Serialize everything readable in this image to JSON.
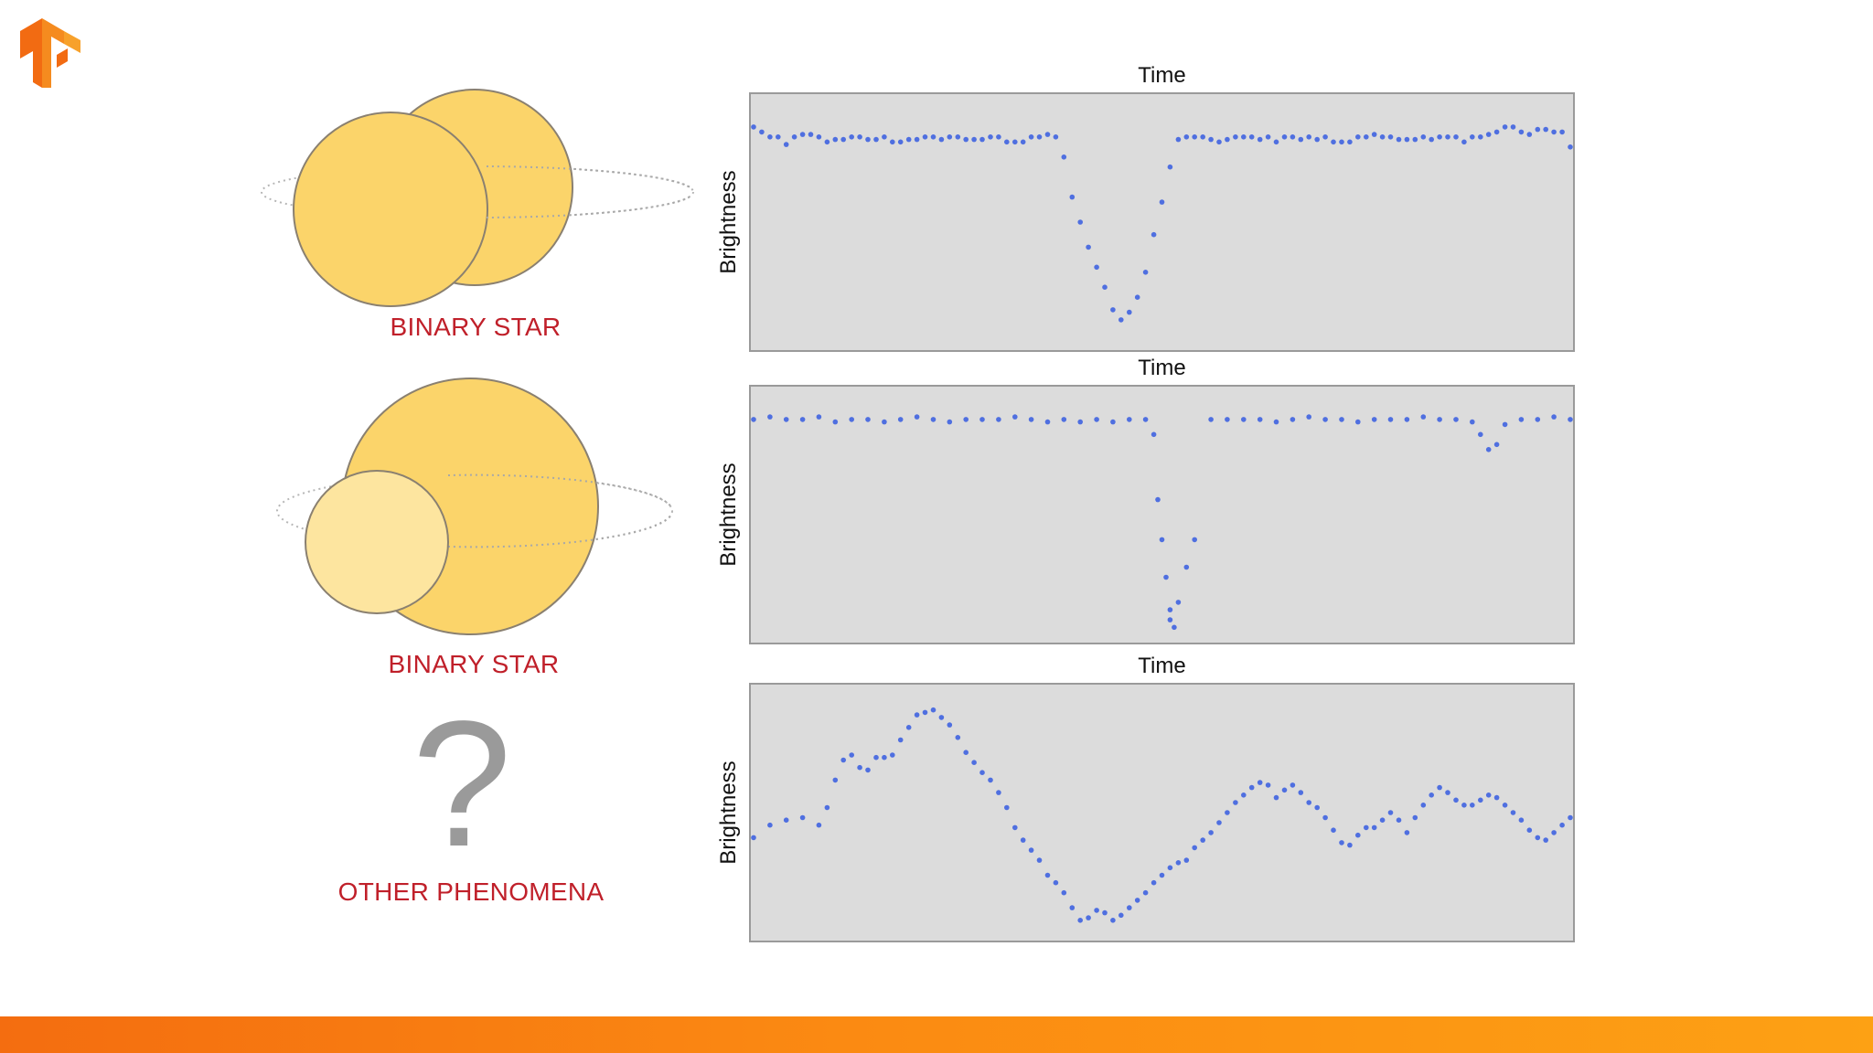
{
  "logo": {
    "icon": "tensorflow-logo-icon",
    "colors": [
      "#f58b1f",
      "#f26b12"
    ]
  },
  "panels": [
    {
      "label": "BINARY STAR",
      "illustration": "two-overlapping-stars"
    },
    {
      "label": "BINARY STAR",
      "illustration": "large-star-with-smaller-companion"
    },
    {
      "label": "OTHER PHENOMENA",
      "illustration": "question-mark-icon"
    }
  ],
  "colors": {
    "label_red": "#c0202a",
    "star": "#fbd46a",
    "star_light": "#fde59f",
    "plot_bg": "#dcdcdc",
    "points": "#4f6fe0",
    "footer_start": "#f46d10",
    "footer_end": "#fda114"
  },
  "chart_data": [
    {
      "type": "scatter",
      "title": "",
      "xlabel": "Time",
      "xlabel_position": "top",
      "ylabel": "Brightness",
      "xlim": [
        0,
        100
      ],
      "ylim": [
        0,
        100
      ],
      "ticks": false,
      "grid": false,
      "series": [
        {
          "x": [
            0,
            1,
            2,
            3,
            4,
            5,
            6,
            7,
            8,
            9,
            10,
            11,
            12,
            13,
            14,
            15,
            16,
            17,
            18,
            19,
            20,
            21,
            22,
            23,
            24,
            25,
            26,
            27,
            28,
            29,
            30,
            31,
            32,
            33,
            34,
            35,
            36,
            37,
            38,
            39,
            40,
            41,
            42,
            43,
            44,
            45,
            46,
            47,
            48,
            49,
            50,
            51,
            52,
            53,
            54,
            55,
            56,
            57,
            58,
            59,
            60,
            61,
            62,
            63,
            64,
            65,
            66,
            67,
            68,
            69,
            70,
            71,
            72,
            73,
            74,
            75,
            76,
            77,
            78,
            79,
            80,
            81,
            82,
            83,
            84,
            85,
            86,
            87,
            88,
            89,
            90,
            91,
            92,
            93,
            94,
            95,
            96,
            97,
            98,
            99,
            100
          ],
          "y": [
            88,
            86,
            84,
            84,
            81,
            84,
            85,
            85,
            84,
            82,
            83,
            83,
            84,
            84,
            83,
            83,
            84,
            82,
            82,
            83,
            83,
            84,
            84,
            83,
            84,
            84,
            83,
            83,
            83,
            84,
            84,
            82,
            82,
            82,
            84,
            84,
            85,
            84,
            76,
            60,
            50,
            40,
            32,
            24,
            15,
            11,
            14,
            20,
            30,
            45,
            58,
            72,
            83,
            84,
            84,
            84,
            83,
            82,
            83,
            84,
            84,
            84,
            83,
            84,
            82,
            84,
            84,
            83,
            84,
            83,
            84,
            82,
            82,
            82,
            84,
            84,
            85,
            84,
            84,
            83,
            83,
            83,
            84,
            83,
            84,
            84,
            84,
            82,
            84,
            84,
            85,
            86,
            88,
            88,
            86,
            85,
            87,
            87,
            86,
            86,
            80
          ]
        }
      ]
    },
    {
      "type": "scatter",
      "title": "",
      "xlabel": "Time",
      "xlabel_position": "top",
      "ylabel": "Brightness",
      "xlim": [
        0,
        100
      ],
      "ylim": [
        0,
        100
      ],
      "ticks": false,
      "grid": false,
      "series": [
        {
          "x": [
            0,
            2,
            4,
            6,
            8,
            10,
            12,
            14,
            16,
            18,
            20,
            22,
            24,
            26,
            28,
            30,
            32,
            34,
            36,
            38,
            40,
            42,
            44,
            46,
            48,
            49,
            49.5,
            50,
            50.5,
            51,
            51,
            51.5,
            52,
            53,
            54,
            56,
            58,
            60,
            62,
            64,
            66,
            68,
            70,
            72,
            74,
            76,
            78,
            80,
            82,
            84,
            86,
            88,
            89,
            90,
            91,
            92,
            94,
            96,
            98,
            100
          ],
          "y": [
            88,
            89,
            88,
            88,
            89,
            87,
            88,
            88,
            87,
            88,
            89,
            88,
            87,
            88,
            88,
            88,
            89,
            88,
            87,
            88,
            87,
            88,
            87,
            88,
            88,
            82,
            56,
            40,
            25,
            12,
            8,
            5,
            15,
            29,
            40,
            88,
            88,
            88,
            88,
            87,
            88,
            89,
            88,
            88,
            87,
            88,
            88,
            88,
            89,
            88,
            88,
            87,
            82,
            76,
            78,
            86,
            88,
            88,
            89,
            88
          ]
        }
      ]
    },
    {
      "type": "scatter",
      "title": "",
      "xlabel": "Time",
      "xlabel_position": "top",
      "ylabel": "Brightness",
      "xlim": [
        0,
        100
      ],
      "ylim": [
        0,
        100
      ],
      "ticks": false,
      "grid": false,
      "series": [
        {
          "x": [
            0,
            2,
            4,
            6,
            8,
            9,
            10,
            11,
            12,
            13,
            14,
            15,
            16,
            17,
            18,
            19,
            20,
            21,
            22,
            23,
            24,
            25,
            26,
            27,
            28,
            29,
            30,
            31,
            32,
            33,
            34,
            35,
            36,
            37,
            38,
            39,
            40,
            41,
            42,
            43,
            44,
            45,
            46,
            47,
            48,
            49,
            50,
            51,
            52,
            53,
            54,
            55,
            56,
            57,
            58,
            59,
            60,
            61,
            62,
            63,
            64,
            65,
            66,
            67,
            68,
            69,
            70,
            71,
            72,
            73,
            74,
            75,
            76,
            77,
            78,
            79,
            80,
            81,
            82,
            83,
            84,
            85,
            86,
            87,
            88,
            89,
            90,
            91,
            92,
            93,
            94,
            95,
            96,
            97,
            98,
            99,
            100
          ],
          "y": [
            40,
            45,
            47,
            48,
            45,
            52,
            63,
            71,
            73,
            68,
            67,
            72,
            72,
            73,
            79,
            84,
            89,
            90,
            91,
            88,
            85,
            80,
            74,
            70,
            66,
            63,
            58,
            52,
            44,
            39,
            35,
            31,
            25,
            22,
            18,
            12,
            7,
            8,
            11,
            10,
            7,
            9,
            12,
            15,
            18,
            22,
            25,
            28,
            30,
            31,
            36,
            39,
            42,
            46,
            50,
            54,
            57,
            60,
            62,
            61,
            56,
            59,
            61,
            58,
            54,
            52,
            48,
            43,
            38,
            37,
            41,
            44,
            44,
            47,
            50,
            47,
            42,
            48,
            53,
            57,
            60,
            58,
            55,
            53,
            53,
            55,
            57,
            56,
            53,
            50,
            47,
            43,
            40,
            39,
            42,
            45,
            48
          ]
        }
      ]
    }
  ]
}
